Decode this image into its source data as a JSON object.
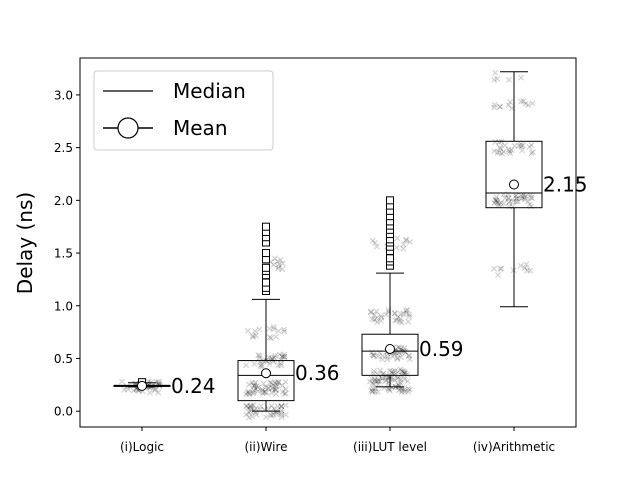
{
  "chart_data": {
    "type": "box",
    "title": "",
    "xlabel": "",
    "ylabel": "Delay (ns)",
    "ylim": [
      -0.15,
      3.35
    ],
    "yticks": [
      "0.0",
      "0.5",
      "1.0",
      "1.5",
      "2.0",
      "2.5",
      "3.0"
    ],
    "legend": {
      "placement": "top-left",
      "entries": [
        {
          "label": "Median",
          "marker": "line"
        },
        {
          "label": "Mean",
          "marker": "circle"
        }
      ]
    },
    "categories": [
      "(i)Logic",
      "(ii)Wire",
      "(iii)LUT level",
      "(iv)Arithmetic"
    ],
    "boxes": [
      {
        "category": "(i)Logic",
        "whisker_low": 0.23,
        "q1": 0.235,
        "median": 0.24,
        "q3": 0.245,
        "whisker_high": 0.27,
        "mean": 0.24,
        "mean_label": "0.24",
        "outliers": [
          0.27,
          0.275
        ],
        "points": [
          {
            "y": 0.23,
            "n": 30
          },
          {
            "y": 0.26,
            "n": 10
          }
        ]
      },
      {
        "category": "(ii)Wire",
        "whisker_low": 0.0,
        "q1": 0.1,
        "median": 0.34,
        "q3": 0.48,
        "whisker_high": 1.06,
        "mean": 0.36,
        "mean_label": "0.36",
        "outliers": [
          1.14,
          1.17,
          1.22,
          1.29,
          1.33,
          1.36,
          1.44,
          1.5,
          1.6,
          1.65,
          1.7,
          1.75
        ],
        "points": [
          {
            "y": 0.0,
            "n": 40
          },
          {
            "y": 0.22,
            "n": 50
          },
          {
            "y": 0.48,
            "n": 30
          },
          {
            "y": 0.75,
            "n": 15
          },
          {
            "y": 1.4,
            "n": 10
          }
        ]
      },
      {
        "category": "(iii)LUT level",
        "whisker_low": 0.23,
        "q1": 0.34,
        "median": 0.57,
        "q3": 0.73,
        "whisker_high": 1.31,
        "mean": 0.59,
        "mean_label": "0.59",
        "outliers": [
          1.38,
          1.42,
          1.45,
          1.52,
          1.56,
          1.6,
          1.63,
          1.68,
          1.72,
          1.76,
          1.8,
          1.85,
          1.9,
          1.95,
          2.0
        ],
        "points": [
          {
            "y": 0.24,
            "n": 40
          },
          {
            "y": 0.34,
            "n": 40
          },
          {
            "y": 0.55,
            "n": 40
          },
          {
            "y": 0.9,
            "n": 30
          },
          {
            "y": 1.6,
            "n": 15
          }
        ]
      },
      {
        "category": "(iv)Arithmetic",
        "whisker_low": 0.99,
        "q1": 1.93,
        "median": 2.07,
        "q3": 2.56,
        "whisker_high": 3.22,
        "mean": 2.15,
        "mean_label": "2.15",
        "outliers": [],
        "points": [
          {
            "y": 2.0,
            "n": 40
          },
          {
            "y": 2.5,
            "n": 25
          },
          {
            "y": 2.9,
            "n": 12
          },
          {
            "y": 1.35,
            "n": 10
          },
          {
            "y": 3.2,
            "n": 5
          }
        ]
      }
    ]
  }
}
